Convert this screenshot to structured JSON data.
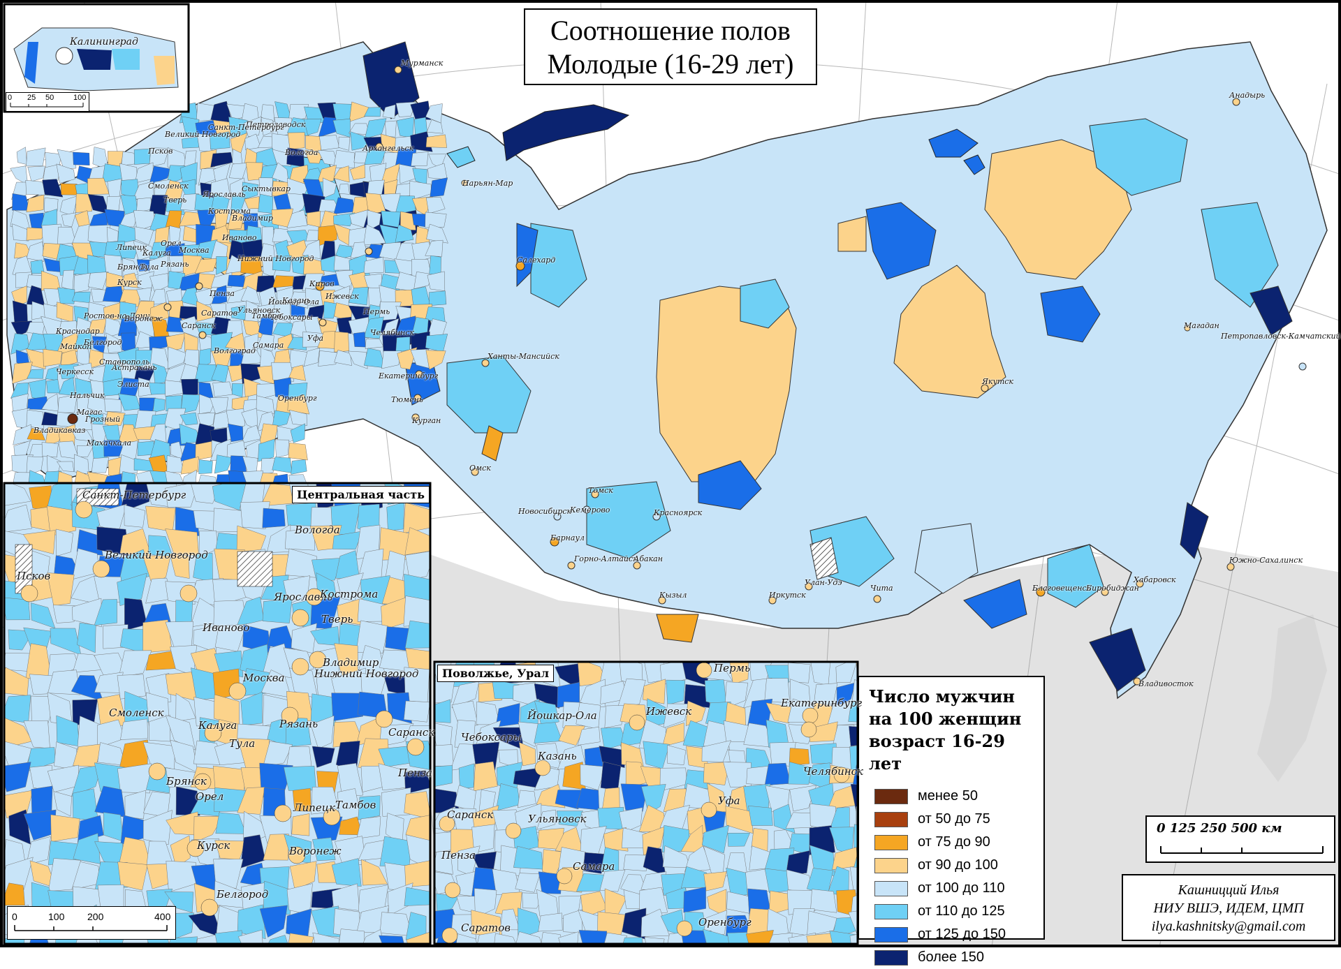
{
  "title": {
    "line1": "Соотношение полов",
    "line2": "Молодые (16-29 лет)"
  },
  "legend": {
    "title_line1": "Число мужчин",
    "title_line2": "на 100 женщин",
    "title_line3": "возраст 16-29 лет",
    "items": [
      {
        "label": "менее 50",
        "color": "#6b2a0f"
      },
      {
        "label": "от 50 до 75",
        "color": "#a8400f"
      },
      {
        "label": "от 75 до 90",
        "color": "#f5a623"
      },
      {
        "label": "от 90 до 100",
        "color": "#fcd38b"
      },
      {
        "label": "от 100 до 110",
        "color": "#c8e4f8"
      },
      {
        "label": "от 110 до 125",
        "color": "#6fd0f5"
      },
      {
        "label": "от 125 до 150",
        "color": "#1a6ee8"
      },
      {
        "label": "более 150",
        "color": "#0b2370"
      }
    ]
  },
  "insets": {
    "central": "Центральная часть",
    "volga": "Поволжье, Урал",
    "kaliningrad": "Калининград"
  },
  "scale": {
    "label": "0   125 250         500 км"
  },
  "small_scales": {
    "kaliningrad": [
      "0",
      "25",
      "50",
      "100"
    ],
    "central": [
      "0",
      "100",
      "200",
      "400"
    ]
  },
  "credits": {
    "author": "Кашницций Илья",
    "org": "НИУ ВШЭ, ИДЕМ, ЦМП",
    "email": "ilya.kashnitsky@gmail.com"
  },
  "cities": {
    "main": [
      "Мурманск",
      "Архангельск",
      "Нарьян-Мар",
      "Салехард",
      "Ханты-Мансийск",
      "Анадырь",
      "Магадан",
      "Петропавловск-Камчатский",
      "Якутск",
      "Томск",
      "Омск",
      "Новосибирск",
      "Кемерово",
      "Красноярск",
      "Барнаул",
      "Горно-Алтайск",
      "Абакан",
      "Кызыл",
      "Иркутск",
      "Улан-Удэ",
      "Чита",
      "Благовещенск",
      "Биробиджан",
      "Хабаровск",
      "Владивосток",
      "Южно-Сахалинск",
      "Курган",
      "Тюмень",
      "Екатеринбург",
      "Челябинск",
      "Пермь",
      "Ижевск",
      "Киров",
      "Уфа",
      "Оренбург",
      "Самара",
      "Ульяновск",
      "Саратов",
      "Волгоград",
      "Астрахань",
      "Элиста",
      "Ставрополь",
      "Краснодар",
      "Майкоп",
      "Черкесск",
      "Нальчик",
      "Магас",
      "Грозный",
      "Владикавказ",
      "Махачкала",
      "Ростов-на-Дону",
      "Белгород",
      "Воронеж",
      "Курск",
      "Брянск",
      "Калуга",
      "Тула",
      "Москва",
      "Рязань",
      "Липецк",
      "Смоленск",
      "Тверь",
      "Ярославль",
      "Кострома",
      "Иваново",
      "Владимир",
      "Нижний Новгород",
      "Йошкар-Ола",
      "Чебоксары",
      "Казань",
      "Саранск",
      "Пенза",
      "Петрозаводск",
      "Санкт-Петербург",
      "Великий Новгород",
      "Псков",
      "Вологда",
      "Сыктывкар",
      "Тамбов",
      "Орел"
    ],
    "central": [
      "Санкт-Петербург",
      "Великий Новгород",
      "Псков",
      "Вологда",
      "Ярославль",
      "Кострома",
      "Иваново",
      "Тверь",
      "Владимир",
      "Нижний Новгород",
      "Москва",
      "Смоленск",
      "Калуга",
      "Рязань",
      "Тула",
      "Саранск",
      "Пенза",
      "Брянск",
      "Орел",
      "Липецк",
      "Тамбов",
      "Курск",
      "Воронеж",
      "Белгород"
    ],
    "volga": [
      "Пермь",
      "Екатеринбург",
      "Ижевск",
      "Йошкар-Ола",
      "Чебоксары",
      "Казань",
      "Челябинск",
      "Уфа",
      "Саранск",
      "Ульяновск",
      "Пенза",
      "Самара",
      "Оренбург",
      "Саратов"
    ]
  }
}
